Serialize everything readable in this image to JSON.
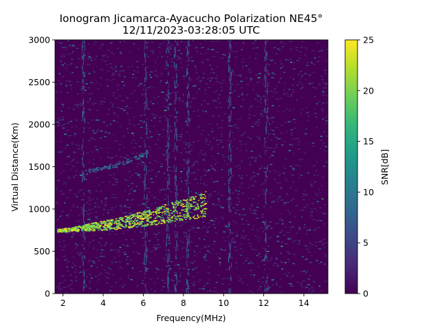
{
  "chart_data": {
    "type": "heatmap",
    "title": "Ionogram Jicamarca-Ayacucho Polarization NE45°",
    "subtitle": "12/11/2023-03:28:05 UTC",
    "xlabel": "Frequency(MHz)",
    "ylabel": "Virtual Distance(Km)",
    "xlim": [
      1.6,
      15.2
    ],
    "ylim": [
      0,
      3000
    ],
    "x_ticks": [
      2,
      4,
      6,
      8,
      10,
      12,
      14
    ],
    "y_ticks": [
      0,
      500,
      1000,
      1500,
      2000,
      2500,
      3000
    ],
    "grid": false,
    "colorbar": {
      "label": "SNR[dB]",
      "range": [
        0,
        25
      ],
      "ticks": [
        0,
        5,
        10,
        15,
        20,
        25
      ],
      "colormap": "viridis",
      "colors": [
        "#440154",
        "#482878",
        "#3e4989",
        "#31688e",
        "#26828e",
        "#1f9e89",
        "#35b779",
        "#6ece58",
        "#b5de2b",
        "#fde725"
      ]
    },
    "features": [
      {
        "name": "trace",
        "freq_mhz": [
          1.7,
          2.5,
          3.5,
          4.5,
          5.5,
          6.5,
          7.5,
          8.5,
          9.1
        ],
        "virtual_distance_km": [
          740,
          760,
          790,
          820,
          860,
          910,
          970,
          1020,
          1060
        ],
        "snr_db": 22
      },
      {
        "name": "faint-trace",
        "freq_mhz": [
          2.9,
          3.8,
          4.8,
          5.7,
          6.2
        ],
        "virtual_distance_km": [
          1420,
          1470,
          1530,
          1610,
          1680
        ],
        "snr_db": 8
      }
    ]
  }
}
